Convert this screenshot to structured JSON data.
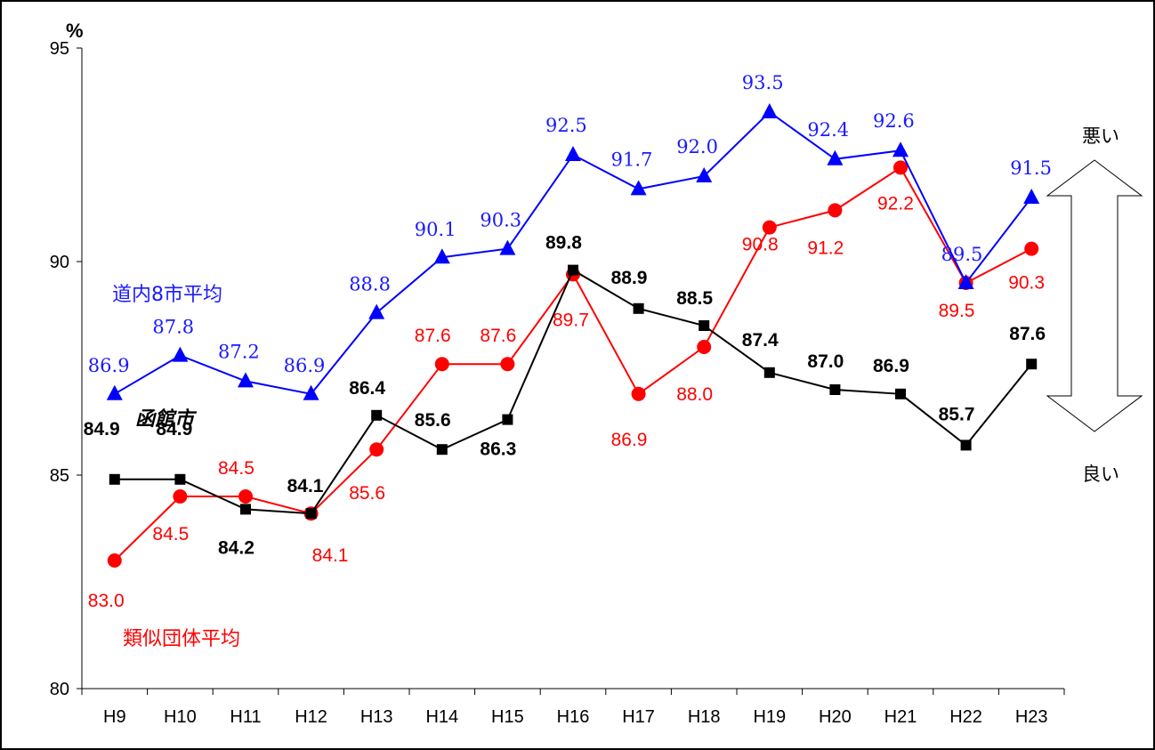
{
  "colors": {
    "hakodate": "#000000",
    "ruiji": "#ff0000",
    "dounai": "#0000ff"
  },
  "chart_data": {
    "type": "line",
    "title": "",
    "y_unit": "%",
    "ylim": [
      80,
      95
    ],
    "yticks": [
      80,
      85,
      90,
      95
    ],
    "categories": [
      "H9",
      "H10",
      "H11",
      "H12",
      "H13",
      "H14",
      "H15",
      "H16",
      "H17",
      "H18",
      "H19",
      "H20",
      "H21",
      "H22",
      "H23"
    ],
    "series": [
      {
        "name": "道内8市平均",
        "key": "dounai",
        "marker": "triangle",
        "values": [
          86.9,
          87.8,
          87.2,
          86.9,
          88.8,
          90.1,
          90.3,
          92.5,
          91.7,
          92.0,
          93.5,
          92.4,
          92.6,
          89.5,
          91.5
        ]
      },
      {
        "name": "函館市",
        "key": "hakodate",
        "marker": "square",
        "values": [
          84.9,
          84.9,
          84.2,
          84.1,
          86.4,
          85.6,
          86.3,
          89.8,
          88.9,
          88.5,
          87.4,
          87.0,
          86.9,
          85.7,
          87.6
        ]
      },
      {
        "name": "類似団体平均",
        "key": "ruiji",
        "marker": "circle",
        "values": [
          83.0,
          84.5,
          84.5,
          84.1,
          85.6,
          87.6,
          87.6,
          89.7,
          86.9,
          88.0,
          90.8,
          91.2,
          92.2,
          89.5,
          90.3
        ]
      }
    ],
    "annotation_top": "悪い",
    "annotation_bottom": "良い",
    "grid": false
  }
}
